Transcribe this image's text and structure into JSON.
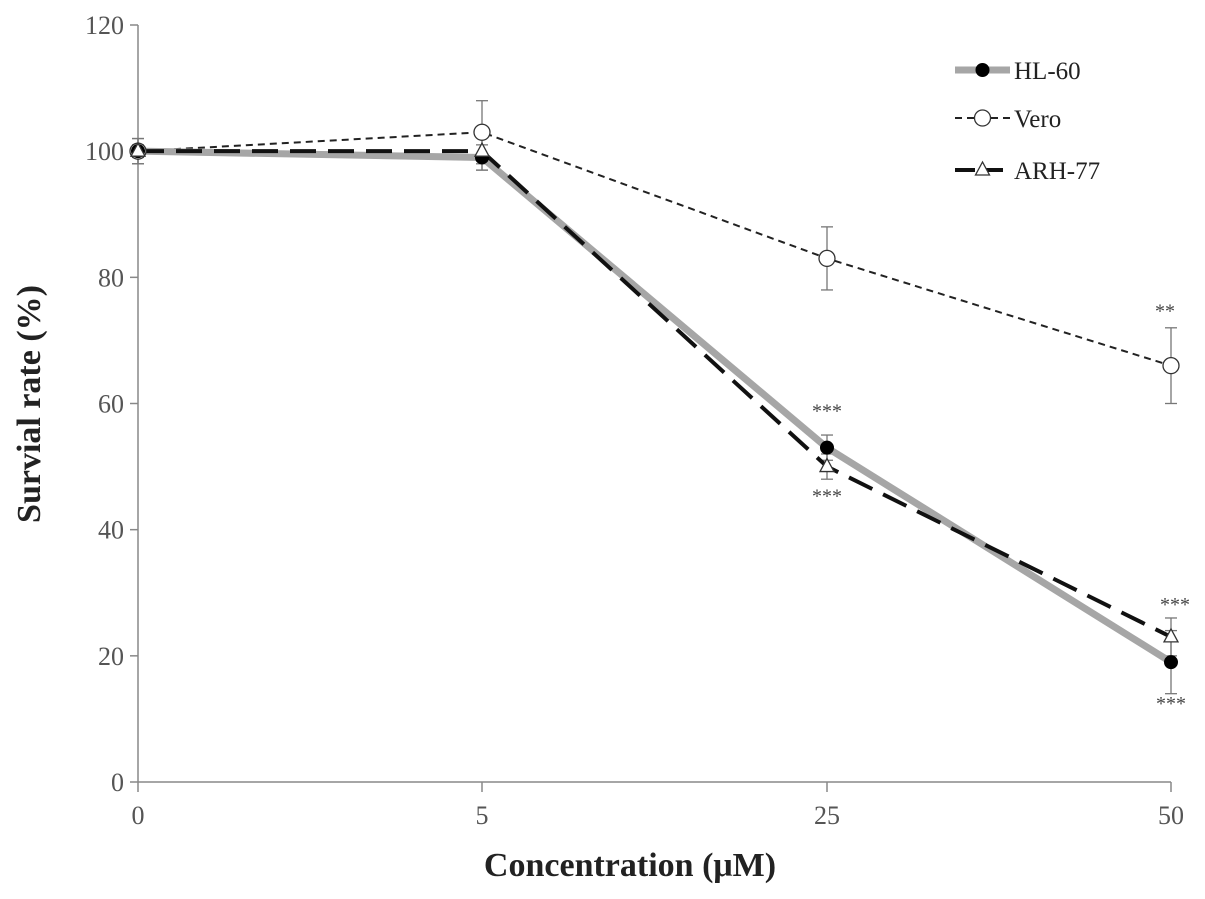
{
  "chart_data": {
    "type": "line",
    "title": "",
    "xlabel": "Concentration (μM)",
    "ylabel": "Survial rate (%)",
    "categories": [
      "0",
      "5",
      "25",
      "50"
    ],
    "ylim": [
      0,
      120
    ],
    "yticks": [
      "0",
      "20",
      "40",
      "60",
      "80",
      "100",
      "120"
    ],
    "grid": false,
    "legend_position": "top-right",
    "series": [
      {
        "name": "HL-60",
        "values": [
          100,
          99,
          53,
          19
        ],
        "errors": [
          2,
          2,
          2,
          5
        ],
        "color": "#a6a6a6",
        "marker": "filled-circle",
        "line": "thick-solid",
        "significance": [
          "",
          "",
          "***",
          "***"
        ]
      },
      {
        "name": "Vero",
        "values": [
          100,
          103,
          83,
          66
        ],
        "errors": [
          2,
          5,
          5,
          6
        ],
        "color": "#222222",
        "marker": "open-circle",
        "line": "short-dash",
        "significance": [
          "",
          "",
          "",
          "**"
        ]
      },
      {
        "name": "ARH-77",
        "values": [
          100,
          100,
          50,
          23
        ],
        "errors": [
          1,
          3,
          2,
          3
        ],
        "color": "#111111",
        "marker": "open-triangle",
        "line": "long-dash",
        "significance": [
          "",
          "",
          "***",
          "***"
        ]
      }
    ]
  }
}
